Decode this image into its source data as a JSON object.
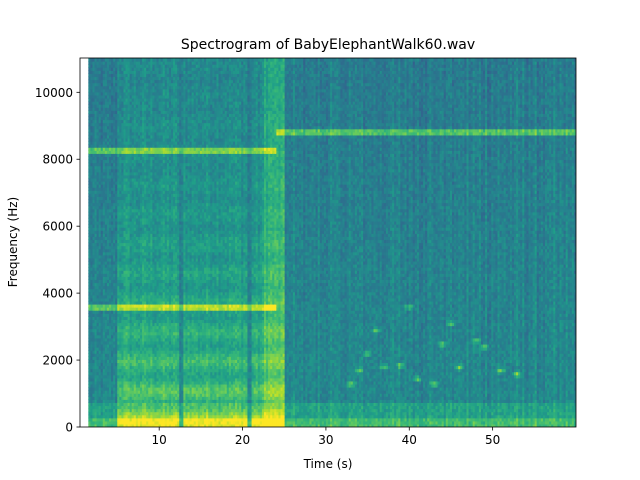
{
  "chart_data": {
    "type": "heatmap",
    "title": "Spectrogram of BabyElephantWalk60.wav",
    "xlabel": "Time (s)",
    "ylabel": "Frequency (Hz)",
    "xlim": [
      0.5,
      60
    ],
    "ylim": [
      0,
      11025
    ],
    "x_ticks": [
      10,
      20,
      30,
      40,
      50
    ],
    "y_ticks": [
      0,
      2000,
      4000,
      6000,
      8000,
      10000
    ],
    "colormap": "viridis",
    "grid": false,
    "legend": "none",
    "data_start_time": 1.5,
    "features": {
      "horizontal_lines_hz": [
        {
          "hz": 3600,
          "from_s": 1.5,
          "to_s": 24
        },
        {
          "hz": 8300,
          "from_s": 1.5,
          "to_s": 24
        },
        {
          "hz": 8850,
          "from_s": 24,
          "to_s": 60
        }
      ],
      "loud_sections": [
        {
          "from_s": 5,
          "to_s": 12.5
        },
        {
          "from_s": 13,
          "to_s": 20.5
        },
        {
          "from_s": 21,
          "to_s": 25
        }
      ],
      "note_blobs": [
        {
          "t": 33,
          "hz": 1300
        },
        {
          "t": 34,
          "hz": 1700
        },
        {
          "t": 35,
          "hz": 2200
        },
        {
          "t": 36,
          "hz": 2900
        },
        {
          "t": 37,
          "hz": 1800
        },
        {
          "t": 39,
          "hz": 1850
        },
        {
          "t": 40,
          "hz": 3600
        },
        {
          "t": 41,
          "hz": 1450
        },
        {
          "t": 43,
          "hz": 1300
        },
        {
          "t": 44,
          "hz": 2500
        },
        {
          "t": 45,
          "hz": 3100
        },
        {
          "t": 46,
          "hz": 1800
        },
        {
          "t": 48,
          "hz": 2600
        },
        {
          "t": 49,
          "hz": 2400
        },
        {
          "t": 51,
          "hz": 1700
        },
        {
          "t": 53,
          "hz": 1600
        }
      ]
    }
  }
}
